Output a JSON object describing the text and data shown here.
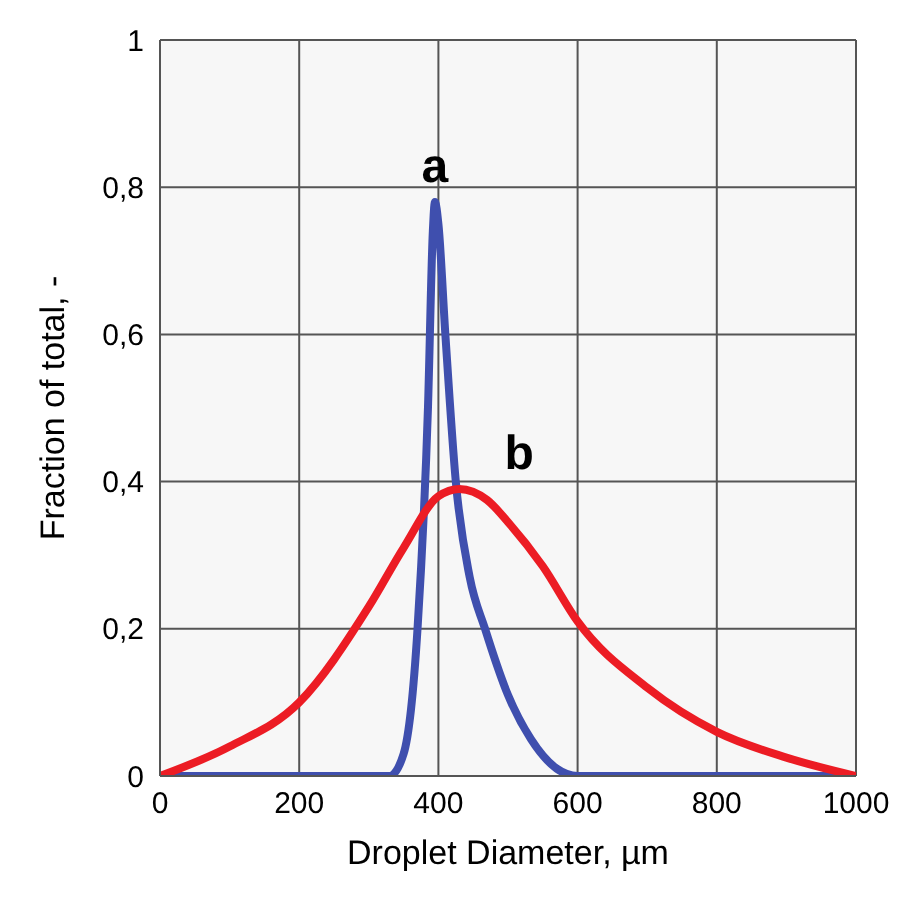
{
  "chart_data": {
    "type": "line",
    "xlabel": "Droplet Diameter, µm",
    "ylabel": "Fraction of total, -",
    "series": [
      {
        "name": "a",
        "color": "#3f4fae",
        "x": [
          0,
          330,
          350,
          370,
          385,
          392,
          395,
          400,
          410,
          425,
          445,
          467,
          500,
          533,
          570,
          600,
          1000
        ],
        "values": [
          0,
          0,
          0.03,
          0.2,
          0.5,
          0.74,
          0.78,
          0.75,
          0.6,
          0.4,
          0.27,
          0.2,
          0.11,
          0.05,
          0.01,
          0,
          0
        ]
      },
      {
        "name": "b",
        "color": "#ec1c24",
        "x": [
          0,
          100,
          200,
          300,
          350,
          400,
          430,
          470,
          500,
          550,
          600,
          700,
          800,
          900,
          1000
        ],
        "values": [
          0,
          0.04,
          0.1,
          0.23,
          0.31,
          0.38,
          0.39,
          0.375,
          0.345,
          0.285,
          0.21,
          0.12,
          0.06,
          0.025,
          0
        ]
      }
    ],
    "xlim": [
      0,
      1000
    ],
    "xticks": [
      0,
      200,
      400,
      600,
      800,
      1000
    ],
    "ylim": [
      0,
      1
    ],
    "yticks": [
      0,
      {
        "value": 0.2,
        "label": "0,2"
      },
      {
        "value": 0.4,
        "label": "0,4"
      },
      {
        "value": 0.6,
        "label": "0,6"
      },
      {
        "value": 0.8,
        "label": "0,8"
      },
      1
    ],
    "grid": true,
    "marker": "none",
    "line_style": "solid"
  }
}
